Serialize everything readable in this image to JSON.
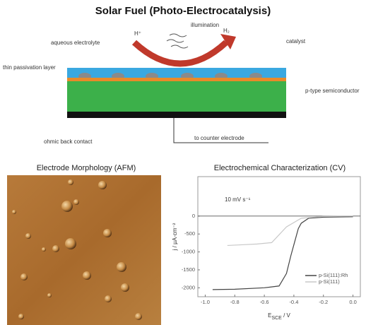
{
  "title": "Solar Fuel (Photo-Electrocatalysis)",
  "diagram": {
    "illumination": "illumination",
    "proton": "H⁺",
    "hydrogen": "H₂",
    "electrolyte": "aqueous electrolyte",
    "catalyst": "catalyst",
    "passivation": "thin passivation layer",
    "semiconductor": "p-type semiconductor",
    "back_contact": "ohmic back contact",
    "counter": "to counter electrode"
  },
  "afm": {
    "title": "Electrode Morphology (AFM)"
  },
  "cv": {
    "type": "line",
    "title": "Electrochemical Characterization (CV)",
    "annotation": "10 mV s⁻¹",
    "ylabel": "j / µA·cm⁻²",
    "xlabel": {
      "main": "E",
      "sub": "SCE",
      "rest": " / V"
    },
    "xlim": [
      -1.05,
      0.05
    ],
    "ylim": [
      -2250,
      1100
    ],
    "xticks": [
      {
        "value": -1.0,
        "label": "-1.0"
      },
      -0.8,
      -0.6,
      -0.4,
      -0.2,
      {
        "value": 0.0,
        "label": "0.0"
      }
    ],
    "yticks": [
      0,
      -500,
      -1000,
      -1500,
      -2000
    ],
    "series": [
      {
        "name": "p-Si(111):Rh",
        "color": "#444444",
        "x": [
          -0.95,
          -0.8,
          -0.6,
          -0.5,
          -0.45,
          -0.42,
          -0.4,
          -0.37,
          -0.35,
          -0.3,
          -0.2,
          0.0
        ],
        "values": [
          -2050,
          -2040,
          -2000,
          -1950,
          -1600,
          -1100,
          -800,
          -350,
          -200,
          -60,
          -30,
          -20
        ]
      },
      {
        "name": "p-Si(111)",
        "color": "#c8c8c8",
        "x": [
          -0.85,
          -0.75,
          -0.65,
          -0.55,
          -0.45,
          -0.35,
          -0.2,
          0.0
        ],
        "values": [
          -820,
          -800,
          -780,
          -740,
          -300,
          -60,
          -10,
          0
        ]
      }
    ]
  }
}
